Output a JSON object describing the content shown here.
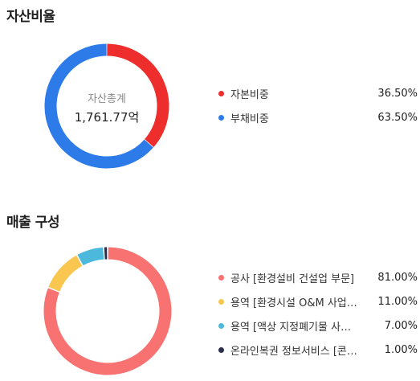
{
  "asset_section": {
    "title": "자산비율"
  },
  "sales_section": {
    "title": "매출 구성"
  },
  "chart_data": [
    {
      "type": "pie",
      "title": "자산비율",
      "center_label": "자산총계",
      "center_value": "1,761.77억",
      "categories": [
        "자본비중",
        "부채비중"
      ],
      "values": [
        36.5,
        63.5
      ],
      "value_labels": [
        "36.50%",
        "63.50%"
      ],
      "colors": [
        "#ee2d2d",
        "#2d7be8"
      ],
      "legend": "right"
    },
    {
      "type": "pie",
      "title": "매출 구성",
      "categories": [
        "공사 [환경설비 건설업 부문]",
        "용역 [환경시설 O&M 사업부문]",
        "용역 [액상 지정폐기물 사업부문]",
        "온라인복권 정보서비스 [콘텐츠 부문]"
      ],
      "display_labels": [
        "공사 [환경설비 건설업 부문]",
        "용역 [환경시설 O&M 사업…",
        "용역 [액상 지정폐기물 사…",
        "온라인복권 정보서비스 [콘…"
      ],
      "values": [
        81.0,
        11.0,
        7.0,
        1.0
      ],
      "value_labels": [
        "81.00%",
        "11.00%",
        "7.00%",
        "1.00%"
      ],
      "colors": [
        "#f87272",
        "#f9c74f",
        "#4cb8dc",
        "#2b2d4a"
      ],
      "legend": "right"
    }
  ]
}
